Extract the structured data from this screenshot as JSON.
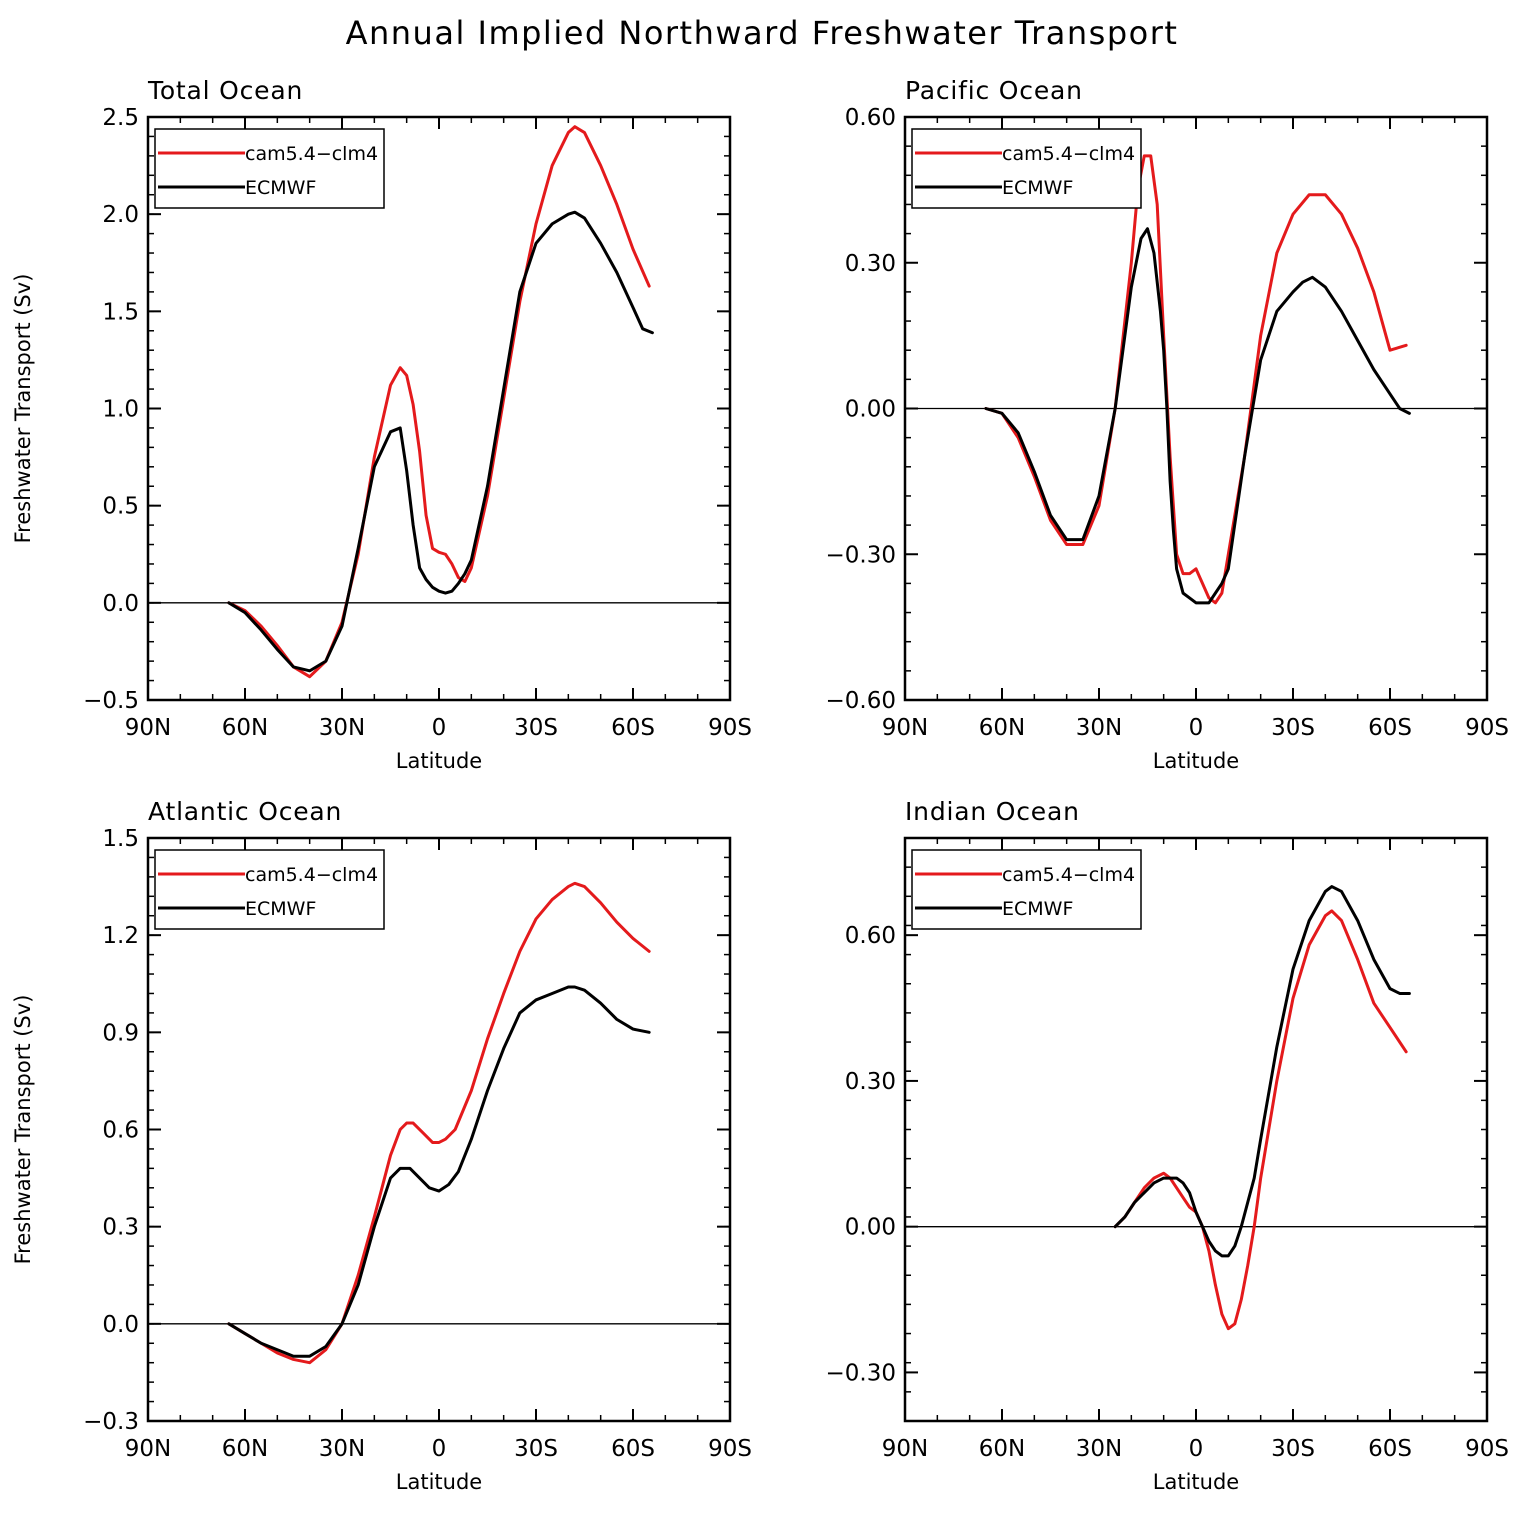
{
  "page": {
    "title": "Annual Implied Northward Freshwater Transport"
  },
  "colors": {
    "model": "#e41a1c",
    "obs": "#000000"
  },
  "chart_data": [
    {
      "type": "line",
      "title": "Total Ocean",
      "xlabel": "Latitude",
      "ylabel": "Freshwater Transport (Sv)",
      "xlim": [
        90,
        -90
      ],
      "ylim": [
        -0.5,
        2.5
      ],
      "xticks": [
        90,
        60,
        30,
        0,
        -30,
        -60,
        -90
      ],
      "xtick_labels": [
        "90N",
        "60N",
        "30N",
        "0",
        "30S",
        "60S",
        "90S"
      ],
      "yticks": [
        -0.5,
        0.0,
        0.5,
        1.0,
        1.5,
        2.0,
        2.5
      ],
      "ytick_labels": [
        "−0.5",
        "0.0",
        "0.5",
        "1.0",
        "1.5",
        "2.0",
        "2.5"
      ],
      "legend": [
        "cam5.4−clm4",
        "ECMWF"
      ],
      "series": [
        {
          "name": "cam5.4−clm4",
          "color": "#e41a1c",
          "x": [
            65,
            60,
            55,
            50,
            45,
            40,
            35,
            30,
            25,
            20,
            15,
            12,
            10,
            8,
            6,
            4,
            2,
            0,
            -2,
            -4,
            -6,
            -8,
            -10,
            -15,
            -20,
            -25,
            -30,
            -35,
            -40,
            -42,
            -45,
            -50,
            -55,
            -60,
            -65
          ],
          "y": [
            0.0,
            -0.04,
            -0.12,
            -0.22,
            -0.33,
            -0.38,
            -0.3,
            -0.1,
            0.25,
            0.75,
            1.12,
            1.21,
            1.17,
            1.02,
            0.78,
            0.45,
            0.28,
            0.26,
            0.25,
            0.2,
            0.13,
            0.11,
            0.18,
            0.55,
            1.05,
            1.55,
            1.95,
            2.25,
            2.42,
            2.45,
            2.42,
            2.25,
            2.05,
            1.82,
            1.63
          ]
        },
        {
          "name": "ECMWF",
          "color": "#000000",
          "x": [
            65,
            60,
            55,
            50,
            45,
            40,
            35,
            30,
            25,
            20,
            15,
            12,
            10,
            8,
            6,
            4,
            2,
            0,
            -2,
            -4,
            -6,
            -8,
            -10,
            -15,
            -20,
            -25,
            -30,
            -35,
            -40,
            -42,
            -45,
            -50,
            -55,
            -60,
            -63,
            -66
          ],
          "y": [
            0.0,
            -0.05,
            -0.14,
            -0.24,
            -0.33,
            -0.35,
            -0.3,
            -0.12,
            0.28,
            0.7,
            0.88,
            0.9,
            0.68,
            0.4,
            0.18,
            0.12,
            0.08,
            0.06,
            0.05,
            0.06,
            0.1,
            0.15,
            0.22,
            0.6,
            1.1,
            1.6,
            1.85,
            1.95,
            2.0,
            2.01,
            1.98,
            1.85,
            1.7,
            1.52,
            1.41,
            1.39
          ]
        }
      ]
    },
    {
      "type": "line",
      "title": "Pacific Ocean",
      "xlabel": "Latitude",
      "ylabel": "",
      "xlim": [
        90,
        -90
      ],
      "ylim": [
        -0.6,
        0.6
      ],
      "xticks": [
        90,
        60,
        30,
        0,
        -30,
        -60,
        -90
      ],
      "xtick_labels": [
        "90N",
        "60N",
        "30N",
        "0",
        "30S",
        "60S",
        "90S"
      ],
      "yticks": [
        -0.6,
        -0.3,
        0.0,
        0.3,
        0.6
      ],
      "ytick_labels": [
        "−0.60",
        "−0.30",
        "0.00",
        "0.30",
        "0.60"
      ],
      "legend": [
        "cam5.4−clm4",
        "ECMWF"
      ],
      "series": [
        {
          "name": "cam5.4−clm4",
          "color": "#e41a1c",
          "x": [
            65,
            60,
            55,
            50,
            45,
            40,
            35,
            30,
            25,
            20,
            18,
            16,
            14,
            12,
            10,
            8,
            6,
            4,
            2,
            0,
            -2,
            -4,
            -6,
            -8,
            -10,
            -15,
            -20,
            -25,
            -30,
            -35,
            -40,
            -45,
            -50,
            -55,
            -60,
            -65
          ],
          "y": [
            0.0,
            -0.01,
            -0.06,
            -0.14,
            -0.23,
            -0.28,
            -0.28,
            -0.2,
            0.0,
            0.3,
            0.45,
            0.52,
            0.52,
            0.42,
            0.15,
            -0.1,
            -0.3,
            -0.34,
            -0.34,
            -0.33,
            -0.36,
            -0.39,
            -0.4,
            -0.38,
            -0.3,
            -0.1,
            0.15,
            0.32,
            0.4,
            0.44,
            0.44,
            0.4,
            0.33,
            0.24,
            0.12,
            0.13
          ]
        },
        {
          "name": "ECMWF",
          "color": "#000000",
          "x": [
            65,
            60,
            55,
            50,
            45,
            40,
            35,
            30,
            25,
            20,
            17,
            15,
            13,
            11,
            10,
            9,
            8,
            7,
            6,
            4,
            2,
            0,
            -2,
            -4,
            -6,
            -8,
            -10,
            -15,
            -20,
            -25,
            -30,
            -33,
            -36,
            -40,
            -45,
            -50,
            -55,
            -60,
            -63,
            -66
          ],
          "y": [
            0.0,
            -0.01,
            -0.05,
            -0.13,
            -0.22,
            -0.27,
            -0.27,
            -0.18,
            0.0,
            0.25,
            0.35,
            0.37,
            0.32,
            0.2,
            0.12,
            0.0,
            -0.15,
            -0.25,
            -0.33,
            -0.38,
            -0.39,
            -0.4,
            -0.4,
            -0.4,
            -0.38,
            -0.36,
            -0.33,
            -0.1,
            0.1,
            0.2,
            0.24,
            0.26,
            0.27,
            0.25,
            0.2,
            0.14,
            0.08,
            0.03,
            0.0,
            -0.01
          ]
        }
      ]
    },
    {
      "type": "line",
      "title": "Atlantic Ocean",
      "xlabel": "Latitude",
      "ylabel": "Freshwater Transport (Sv)",
      "xlim": [
        90,
        -90
      ],
      "ylim": [
        -0.3,
        1.5
      ],
      "xticks": [
        90,
        60,
        30,
        0,
        -30,
        -60,
        -90
      ],
      "xtick_labels": [
        "90N",
        "60N",
        "30N",
        "0",
        "30S",
        "60S",
        "90S"
      ],
      "yticks": [
        -0.3,
        0.0,
        0.3,
        0.6,
        0.9,
        1.2,
        1.5
      ],
      "ytick_labels": [
        "−0.3",
        "0.0",
        "0.3",
        "0.6",
        "0.9",
        "1.2",
        "1.5"
      ],
      "legend": [
        "cam5.4−clm4",
        "ECMWF"
      ],
      "series": [
        {
          "name": "cam5.4−clm4",
          "color": "#e41a1c",
          "x": [
            65,
            60,
            55,
            50,
            45,
            40,
            35,
            30,
            25,
            20,
            15,
            12,
            10,
            8,
            5,
            2,
            0,
            -2,
            -5,
            -10,
            -15,
            -20,
            -25,
            -30,
            -35,
            -40,
            -42,
            -45,
            -50,
            -55,
            -60,
            -65
          ],
          "y": [
            0.0,
            -0.03,
            -0.06,
            -0.09,
            -0.11,
            -0.12,
            -0.08,
            0.0,
            0.15,
            0.33,
            0.52,
            0.6,
            0.62,
            0.62,
            0.59,
            0.56,
            0.56,
            0.57,
            0.6,
            0.72,
            0.88,
            1.02,
            1.15,
            1.25,
            1.31,
            1.35,
            1.36,
            1.35,
            1.3,
            1.24,
            1.19,
            1.15
          ]
        },
        {
          "name": "ECMWF",
          "color": "#000000",
          "x": [
            65,
            60,
            55,
            50,
            45,
            40,
            35,
            30,
            25,
            20,
            15,
            12,
            9,
            6,
            3,
            0,
            -3,
            -6,
            -10,
            -15,
            -20,
            -25,
            -30,
            -35,
            -40,
            -42,
            -45,
            -50,
            -55,
            -60,
            -65
          ],
          "y": [
            0.0,
            -0.03,
            -0.06,
            -0.08,
            -0.1,
            -0.1,
            -0.07,
            0.0,
            0.12,
            0.3,
            0.45,
            0.48,
            0.48,
            0.45,
            0.42,
            0.41,
            0.43,
            0.47,
            0.57,
            0.72,
            0.85,
            0.96,
            1.0,
            1.02,
            1.04,
            1.04,
            1.03,
            0.99,
            0.94,
            0.91,
            0.9
          ]
        }
      ]
    },
    {
      "type": "line",
      "title": "Indian Ocean",
      "xlabel": "Latitude",
      "ylabel": "",
      "xlim": [
        90,
        -90
      ],
      "ylim": [
        -0.4,
        0.8
      ],
      "xticks": [
        90,
        60,
        30,
        0,
        -30,
        -60,
        -90
      ],
      "xtick_labels": [
        "90N",
        "60N",
        "30N",
        "0",
        "30S",
        "60S",
        "90S"
      ],
      "yticks": [
        -0.3,
        0.0,
        0.3,
        0.6
      ],
      "ytick_labels": [
        "−0.30",
        "0.00",
        "0.30",
        "0.60"
      ],
      "legend": [
        "cam5.4−clm4",
        "ECMWF"
      ],
      "series": [
        {
          "name": "cam5.4−clm4",
          "color": "#e41a1c",
          "x": [
            25,
            22,
            19,
            16,
            13,
            10,
            8,
            6,
            4,
            2,
            0,
            -2,
            -4,
            -6,
            -8,
            -10,
            -12,
            -14,
            -16,
            -18,
            -20,
            -25,
            -30,
            -35,
            -40,
            -42,
            -45,
            -50,
            -55,
            -60,
            -65
          ],
          "y": [
            0.0,
            0.02,
            0.05,
            0.08,
            0.1,
            0.11,
            0.1,
            0.08,
            0.06,
            0.04,
            0.03,
            0.0,
            -0.05,
            -0.12,
            -0.18,
            -0.21,
            -0.2,
            -0.15,
            -0.08,
            0.0,
            0.1,
            0.3,
            0.47,
            0.58,
            0.64,
            0.65,
            0.63,
            0.55,
            0.46,
            0.41,
            0.36
          ]
        },
        {
          "name": "ECMWF",
          "color": "#000000",
          "x": [
            25,
            22,
            19,
            16,
            13,
            10,
            8,
            6,
            4,
            2,
            0,
            -2,
            -4,
            -6,
            -8,
            -10,
            -12,
            -14,
            -16,
            -18,
            -20,
            -25,
            -30,
            -35,
            -40,
            -42,
            -45,
            -50,
            -55,
            -60,
            -63,
            -66
          ],
          "y": [
            0.0,
            0.02,
            0.05,
            0.07,
            0.09,
            0.1,
            0.1,
            0.1,
            0.09,
            0.07,
            0.03,
            0.0,
            -0.03,
            -0.05,
            -0.06,
            -0.06,
            -0.04,
            0.0,
            0.05,
            0.1,
            0.18,
            0.37,
            0.53,
            0.63,
            0.69,
            0.7,
            0.69,
            0.63,
            0.55,
            0.49,
            0.48,
            0.48
          ]
        }
      ]
    }
  ]
}
